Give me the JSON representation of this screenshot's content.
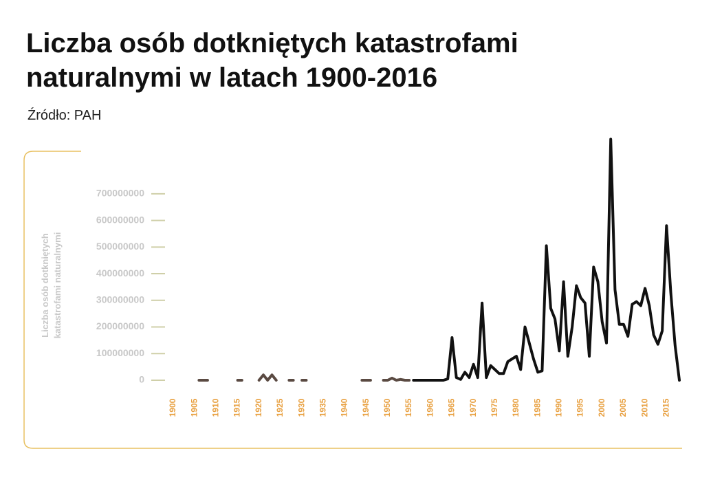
{
  "chart_data": {
    "type": "line",
    "title": "Liczba osób dotkniętych katastrofami naturalnymi w latach 1900-2016",
    "subtitle": "Źródło: PAH",
    "y_label": [
      "Liczba osób dotkniętych",
      "katastrofami naturalnymi"
    ],
    "xlim": [
      1900,
      2018
    ],
    "xticks": [
      1900,
      1905,
      1910,
      1915,
      1920,
      1925,
      1930,
      1935,
      1940,
      1945,
      1950,
      1955,
      1960,
      1965,
      1970,
      1975,
      1980,
      1985,
      1990,
      1995,
      2000,
      2005,
      2010,
      2015
    ],
    "ylim": [
      0,
      950000000
    ],
    "yticks": [
      0,
      100000000,
      200000000,
      300000000,
      400000000,
      500000000,
      600000000,
      700000000
    ],
    "series": [
      {
        "color": "#5a4a42",
        "x": [
          1906,
          1907,
          1908,
          1909,
          1915,
          1916,
          1917,
          1920,
          1921,
          1922,
          1923,
          1924,
          1925,
          1927,
          1928,
          1929,
          1930,
          1931,
          1932,
          1944,
          1945,
          1946,
          1947,
          1949,
          1950,
          1951,
          1952,
          1953,
          1954,
          1955
        ],
        "values": [
          0,
          0,
          0,
          null,
          0,
          0,
          null,
          0,
          20000000,
          0,
          20000000,
          0,
          null,
          0,
          0,
          null,
          0,
          0,
          null,
          0,
          0,
          0,
          null,
          0,
          0,
          8000000,
          0,
          3000000,
          0,
          0
        ]
      },
      {
        "color": "#111111",
        "x": [
          1956,
          1957,
          1958,
          1959,
          1960,
          1961,
          1962,
          1963,
          1964,
          1965,
          1966,
          1967,
          1968,
          1969,
          1970,
          1971,
          1972,
          1973,
          1974,
          1975,
          1976,
          1977,
          1978,
          1979,
          1980,
          1981,
          1982,
          1983,
          1984,
          1985,
          1986,
          1987,
          1988,
          1989,
          1990,
          1991,
          1992,
          1993,
          1994,
          1995,
          1996,
          1997,
          1998,
          1999,
          2000,
          2001,
          2002,
          2003,
          2004,
          2005,
          2006,
          2007,
          2008,
          2009,
          2010,
          2011,
          2012,
          2013,
          2014,
          2015,
          2016,
          2017,
          2018
        ],
        "values": [
          0,
          0,
          0,
          0,
          0,
          0,
          0,
          0,
          5000000,
          160000000,
          10000000,
          3000000,
          30000000,
          10000000,
          60000000,
          10000000,
          290000000,
          10000000,
          55000000,
          40000000,
          25000000,
          25000000,
          70000000,
          80000000,
          90000000,
          40000000,
          200000000,
          140000000,
          80000000,
          30000000,
          35000000,
          505000000,
          270000000,
          230000000,
          110000000,
          370000000,
          90000000,
          200000000,
          355000000,
          310000000,
          290000000,
          90000000,
          425000000,
          370000000,
          220000000,
          140000000,
          905000000,
          340000000,
          210000000,
          210000000,
          165000000,
          285000000,
          295000000,
          280000000,
          345000000,
          280000000,
          170000000,
          135000000,
          185000000,
          580000000,
          330000000,
          130000000,
          0
        ]
      }
    ]
  }
}
